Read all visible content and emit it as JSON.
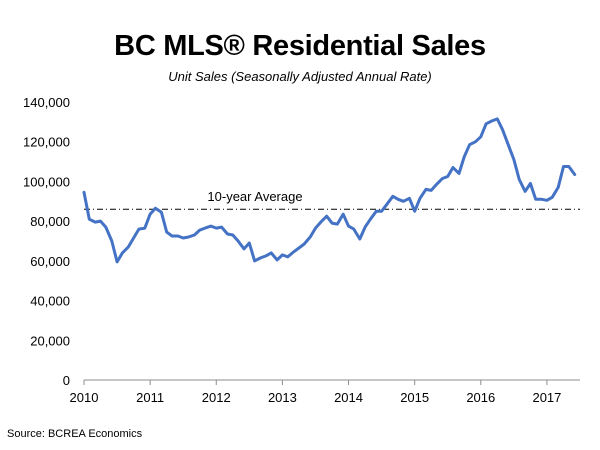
{
  "chart_data": {
    "type": "line",
    "title": "BC MLS® Residential Sales",
    "subtitle": "Unit Sales (Seasonally Adjusted Annual Rate)",
    "xlabel": "",
    "ylabel": "",
    "xlim": [
      2010,
      2017.5
    ],
    "ylim": [
      0,
      140000
    ],
    "y_ticks": [
      "0",
      "20,000",
      "40,000",
      "60,000",
      "80,000",
      "100,000",
      "120,000",
      "140,000"
    ],
    "y_tick_values": [
      0,
      20000,
      40000,
      60000,
      80000,
      100000,
      120000,
      140000
    ],
    "x_ticks": [
      "2010",
      "2011",
      "2012",
      "2013",
      "2014",
      "2015",
      "2016",
      "2017"
    ],
    "x_tick_values": [
      2010,
      2011,
      2012,
      2013,
      2014,
      2015,
      2016,
      2017
    ],
    "grid": false,
    "line_color": "#4472C4",
    "reference_line": {
      "label": "10-year Average",
      "value": 86000,
      "color": "#000000"
    },
    "series": [
      {
        "x": [
          2010.0,
          2010.08,
          2010.17,
          2010.25,
          2010.33,
          2010.42,
          2010.5,
          2010.58,
          2010.67,
          2010.75,
          2010.83,
          2010.92,
          2011.0,
          2011.08,
          2011.17,
          2011.25,
          2011.33,
          2011.42,
          2011.5,
          2011.58,
          2011.67,
          2011.75,
          2011.83,
          2011.92,
          2012.0,
          2012.08,
          2012.17,
          2012.25,
          2012.33,
          2012.42,
          2012.5,
          2012.58,
          2012.67,
          2012.75,
          2012.83,
          2012.92,
          2013.0,
          2013.08,
          2013.17,
          2013.25,
          2013.33,
          2013.42,
          2013.5,
          2013.58,
          2013.67,
          2013.75,
          2013.83,
          2013.92,
          2014.0,
          2014.08,
          2014.17,
          2014.25,
          2014.33,
          2014.42,
          2014.5,
          2014.58,
          2014.67,
          2014.75,
          2014.83,
          2014.92,
          2015.0,
          2015.08,
          2015.17,
          2015.25,
          2015.33,
          2015.42,
          2015.5,
          2015.58,
          2015.67,
          2015.75,
          2015.83,
          2015.92,
          2016.0,
          2016.08,
          2016.17,
          2016.25,
          2016.33,
          2016.42,
          2016.5,
          2016.58,
          2016.67,
          2016.75,
          2016.83,
          2016.92,
          2017.0,
          2017.08,
          2017.17,
          2017.25,
          2017.33,
          2017.42
        ],
        "values": [
          94500,
          81000,
          79500,
          80000,
          77000,
          70000,
          59500,
          64000,
          67000,
          71500,
          76000,
          76500,
          83500,
          86500,
          84500,
          74500,
          72500,
          72500,
          71500,
          72000,
          73000,
          75500,
          76500,
          77500,
          76500,
          77000,
          73500,
          73000,
          70000,
          66000,
          69000,
          60000,
          61500,
          62500,
          64000,
          60500,
          63000,
          62000,
          64500,
          66500,
          68500,
          72000,
          76500,
          79500,
          82500,
          79000,
          78500,
          83500,
          77500,
          76000,
          71000,
          77000,
          81000,
          85000,
          85000,
          88500,
          92500,
          91000,
          90000,
          91500,
          85000,
          91500,
          96000,
          95500,
          98500,
          101500,
          102500,
          107000,
          104000,
          112500,
          118500,
          120000,
          122500,
          129000,
          130500,
          131500,
          126000,
          118000,
          111000,
          101000,
          95000,
          99000,
          91000,
          91000,
          90500,
          92000,
          97000,
          107500,
          107500,
          103500
        ]
      }
    ]
  },
  "source": "Source: BCREA Economics"
}
